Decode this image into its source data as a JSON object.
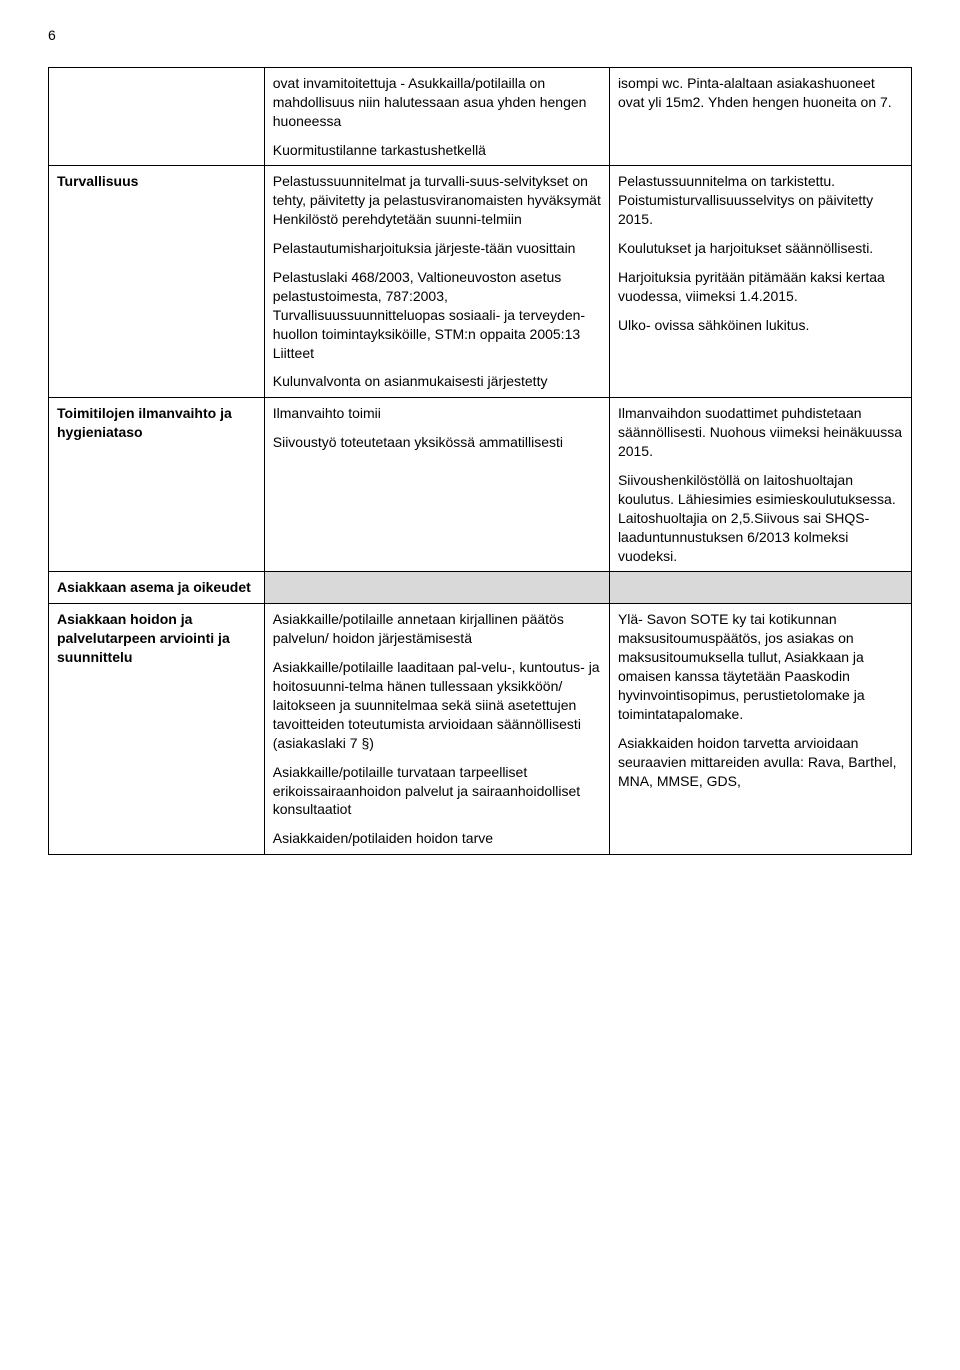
{
  "pageNumber": "6",
  "rows": [
    {
      "col1": [],
      "col2": [
        "ovat invamitoitettuja - Asukkailla/potilailla on mahdollisuus niin halutessaan asua yhden hengen huoneessa",
        "Kuormitustilanne tarkastushetkellä"
      ],
      "col3": [
        "isompi wc. Pinta-alaltaan asiakashuoneet ovat yli 15m2. Yhden hengen huoneita on 7."
      ]
    },
    {
      "col1Bold": "Turvallisuus",
      "col2": [
        "Pelastussuunnitelmat ja turvalli-suus-selvitykset on tehty, päivitetty ja pelastusviranomaisten hyväksymät Henkilöstö perehdytetään suunni-telmiin",
        "Pelastautumisharjoituksia järjeste-tään vuosittain",
        "Pelastuslaki 468/2003, Valtioneuvoston asetus pelastustoimesta, 787:2003, Turvallisuussuunnitteluopas sosiaali- ja terveyden-huollon toimintayksiköille, STM:n oppaita 2005:13 Liitteet",
        "Kulunvalvonta on asianmukaisesti järjestetty"
      ],
      "col3": [
        "Pelastussuunnitelma on tarkistettu. Poistumisturvallisuusselvitys on päivitetty 2015.",
        "Koulutukset ja harjoitukset säännöllisesti.",
        "Harjoituksia pyritään pitämään kaksi kertaa vuodessa, viimeksi 1.4.2015.",
        "Ulko- ovissa sähköinen lukitus."
      ]
    },
    {
      "col1Bold": "Toimitilojen ilmanvaihto ja hygieniataso",
      "col2": [
        "Ilmanvaihto toimii",
        "Siivoustyö toteutetaan yksikössä ammatillisesti"
      ],
      "col3": [
        "Ilmanvaihdon suodattimet puhdistetaan säännöllisesti. Nuohous viimeksi heinäkuussa 2015.",
        "Siivoushenkilöstöllä on laitoshuoltajan koulutus. Lähiesimies esimieskoulutuksessa. Laitoshuoltajia on 2,5.Siivous sai SHQS- laaduntunnustuksen 6/2013 kolmeksi vuodeksi."
      ]
    },
    {
      "shaded": true,
      "col1Bold": "Asiakkaan asema ja oikeudet",
      "col2": [],
      "col3": []
    },
    {
      "col1Bold": "Asiakkaan hoidon ja palvelutarpeen arviointi ja suunnittelu",
      "col2": [
        "Asiakkaille/potilaille annetaan kirjallinen päätös palvelun/ hoidon järjestämisestä",
        "Asiakkaille/potilaille laaditaan pal-velu-, kuntoutus- ja hoitosuunni-telma hänen tullessaan yksikköön/ laitokseen ja suunnitelmaa sekä siinä asetettujen tavoitteiden toteutumista arvioidaan säännöllisesti (asiakaslaki 7 §)",
        "Asiakkaille/potilaille turvataan tarpeelliset erikoissairaanhoidon palvelut ja sairaanhoidolliset konsultaatiot",
        "Asiakkaiden/potilaiden hoidon tarve"
      ],
      "col3": [
        "Ylä- Savon SOTE ky tai kotikunnan maksusitoumuspäätös, jos asiakas on maksusitoumuksella tullut, Asiakkaan ja omaisen kanssa täytetään Paaskodin hyvinvointisopimus, perustietolomake ja toimintatapalomake.",
        "Asiakkaiden hoidon tarvetta arvioidaan seuraavien mittareiden avulla: Rava, Barthel, MNA, MMSE, GDS,"
      ]
    }
  ]
}
